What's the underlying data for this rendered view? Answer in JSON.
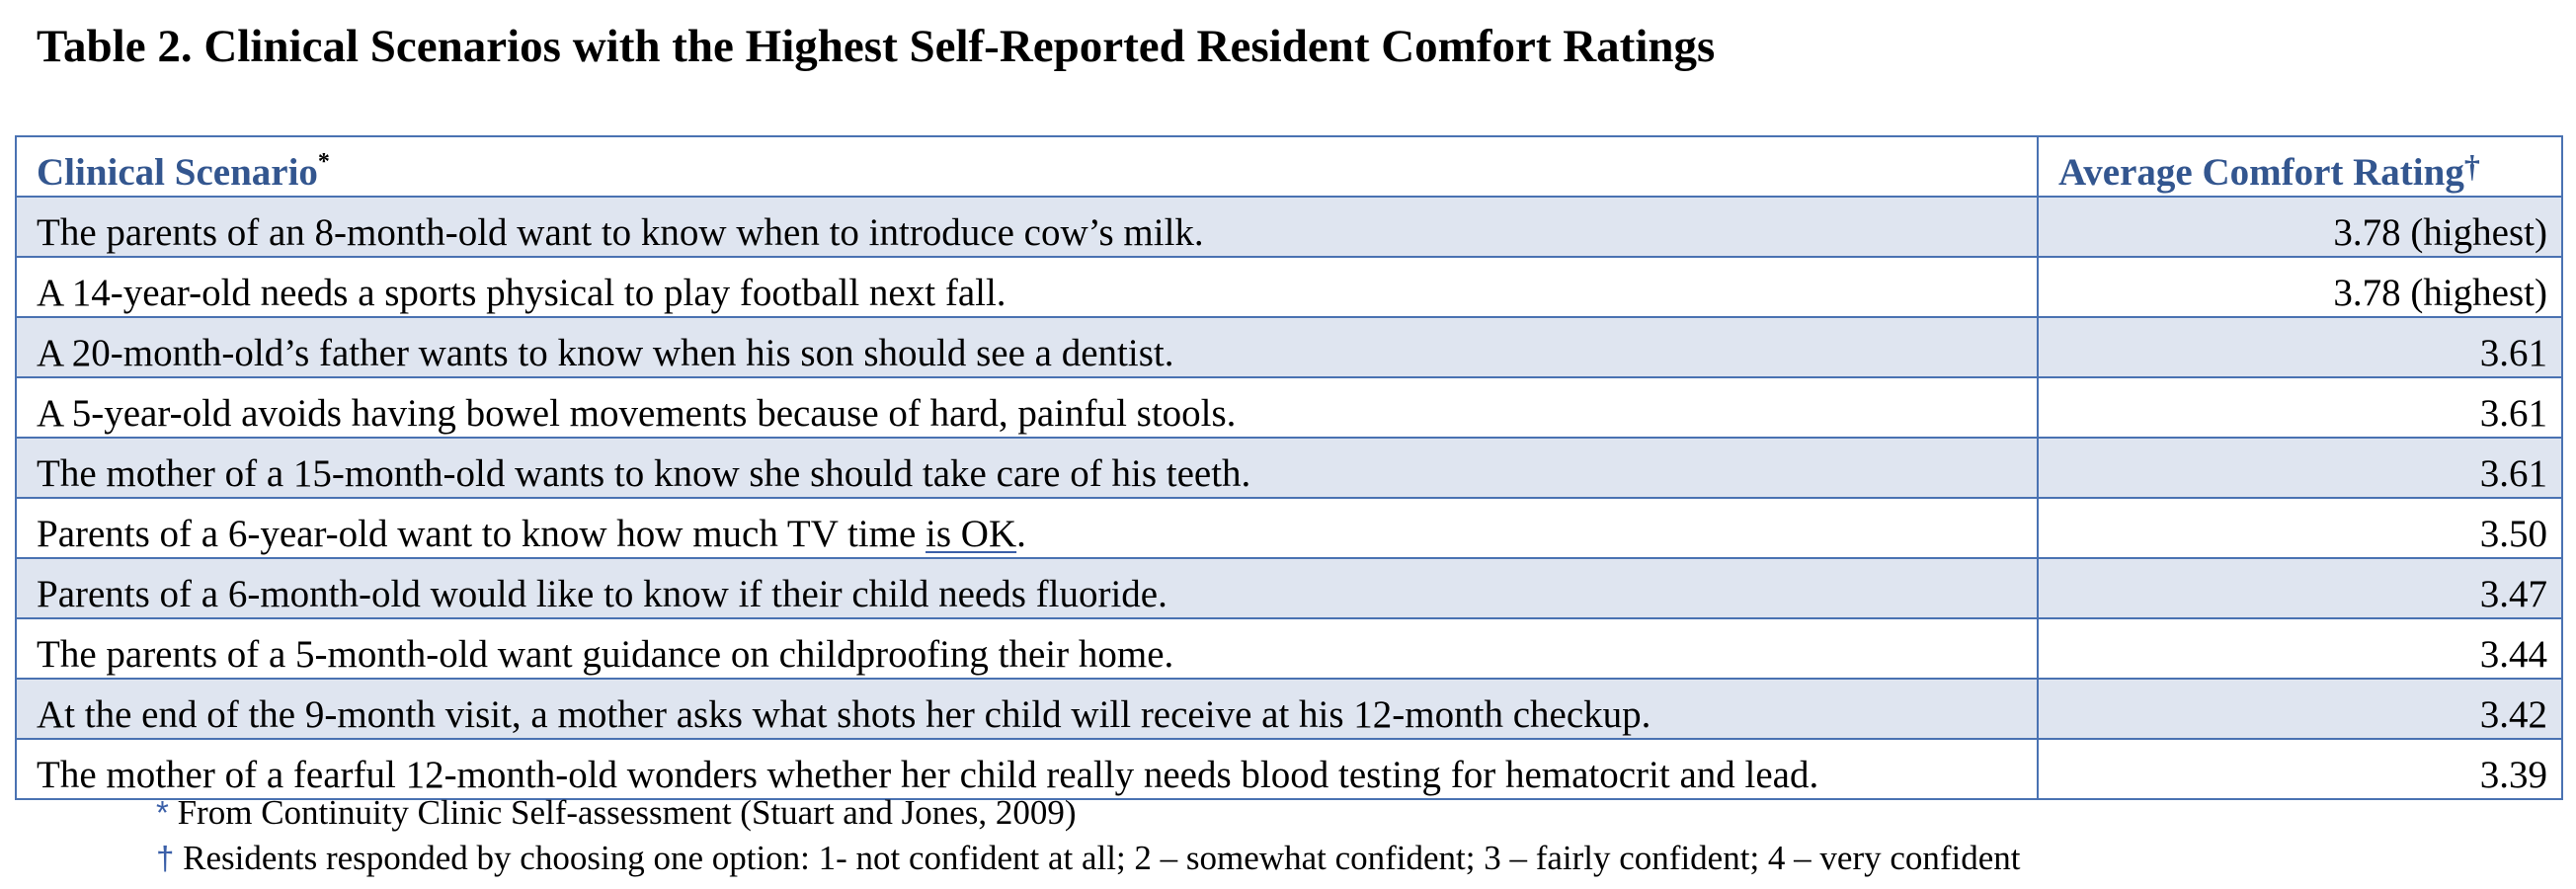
{
  "title": "Table 2. Clinical Scenarios with the Highest Self-Reported Resident Comfort Ratings",
  "table": {
    "headers": {
      "scenario": "Clinical Scenario",
      "scenario_mark": "*",
      "rating": "Average Comfort Rating",
      "rating_mark": "†"
    },
    "rows": [
      {
        "scenario": "The parents of an 8-month-old want to know when to introduce cow’s milk.",
        "rating": "3.78 (highest)"
      },
      {
        "scenario": "A 14-year-old needs a sports physical to play football next fall.",
        "rating": "3.78 (highest)"
      },
      {
        "scenario": "A 20-month-old’s father wants to know when his son should see a dentist.",
        "rating": "3.61"
      },
      {
        "scenario": "A 5-year-old avoids having bowel movements because of hard, painful stools.",
        "rating": "3.61"
      },
      {
        "scenario": "The mother of a 15-month-old wants to know she should take care of his teeth.",
        "rating": "3.61"
      },
      {
        "scenario_pre": "Parents of a 6-year-old want to know how much TV time ",
        "scenario_underlined": "is OK",
        "scenario_post": ".",
        "rating": "3.50"
      },
      {
        "scenario": "Parents of a 6-month-old would like to know if their child needs fluoride.",
        "rating": "3.47"
      },
      {
        "scenario": "The parents of a 5-month-old want guidance on childproofing their home.",
        "rating": "3.44"
      },
      {
        "scenario": "At the end of the 9-month visit, a mother asks what shots her child will receive at his 12-month checkup.",
        "rating": "3.42"
      },
      {
        "scenario": "The mother of a fearful 12-month-old wonders whether her child really needs blood testing for hematocrit and lead.",
        "rating": "3.39"
      }
    ]
  },
  "footnotes": [
    {
      "mark": "*",
      "text": "From Continuity Clinic Self-assessment (Stuart and Jones, 2009)"
    },
    {
      "mark": "†",
      "text": "Residents responded by choosing one option: 1- not confident at all; 2 – somewhat confident; 3 – fairly confident; 4 – very confident"
    }
  ],
  "colors": {
    "header_text": "#33568f",
    "border": "#4a72b2",
    "band_fill": "#dfe5f0",
    "footnote_mark": "#3a5fa8"
  }
}
